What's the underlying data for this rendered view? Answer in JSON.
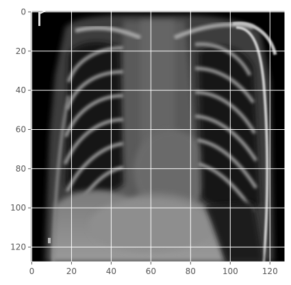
{
  "figure": {
    "description_kind": "grayscale chest x-ray rendered as image with axes",
    "x_ticks": [
      "0",
      "20",
      "40",
      "60",
      "80",
      "100",
      "120"
    ],
    "y_ticks": [
      "0",
      "20",
      "40",
      "60",
      "80",
      "100",
      "120"
    ],
    "x_tick_values": [
      0,
      20,
      40,
      60,
      80,
      100,
      120
    ],
    "y_tick_values": [
      0,
      20,
      40,
      60,
      80,
      100,
      120
    ],
    "x_range": [
      -0.5,
      127.5
    ],
    "y_range": [
      -0.5,
      127.5
    ],
    "grid": true,
    "colors": {
      "background": "#000000",
      "grid": "#ffffff",
      "axis_spine": "#ffffff",
      "tick_text": "#555555",
      "bone": "#c8c8c8",
      "soft_tissue": "#6e6e6e",
      "lung_field": "#161616"
    }
  }
}
